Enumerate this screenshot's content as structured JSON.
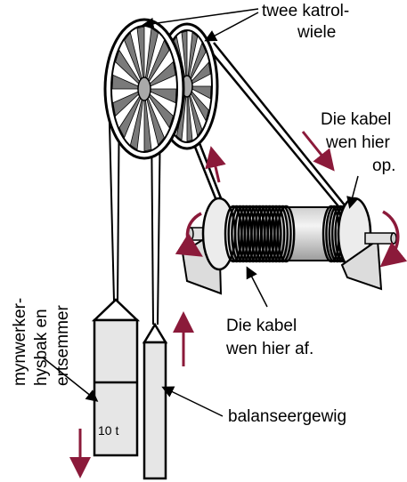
{
  "labels": {
    "pulleys_line1": "twee katrol-",
    "pulleys_line2": "wiele",
    "cable_up_line1": "Die kabel",
    "cable_up_line2": "wen hier",
    "cable_up_line3": "op.",
    "cable_down_line1": "Die kabel",
    "cable_down_line2": "wen hier af.",
    "counterweight": "balanseergewig",
    "cage_line1": "mynwerker-",
    "cage_line2": "hysbak en",
    "cage_line3": "ertsemmer",
    "mass": "10 t"
  },
  "colors": {
    "arrow": "#8b1a3a",
    "hub": "#a9a9a9",
    "drum": "#d8d8d8",
    "box": "#e6e6e6"
  }
}
